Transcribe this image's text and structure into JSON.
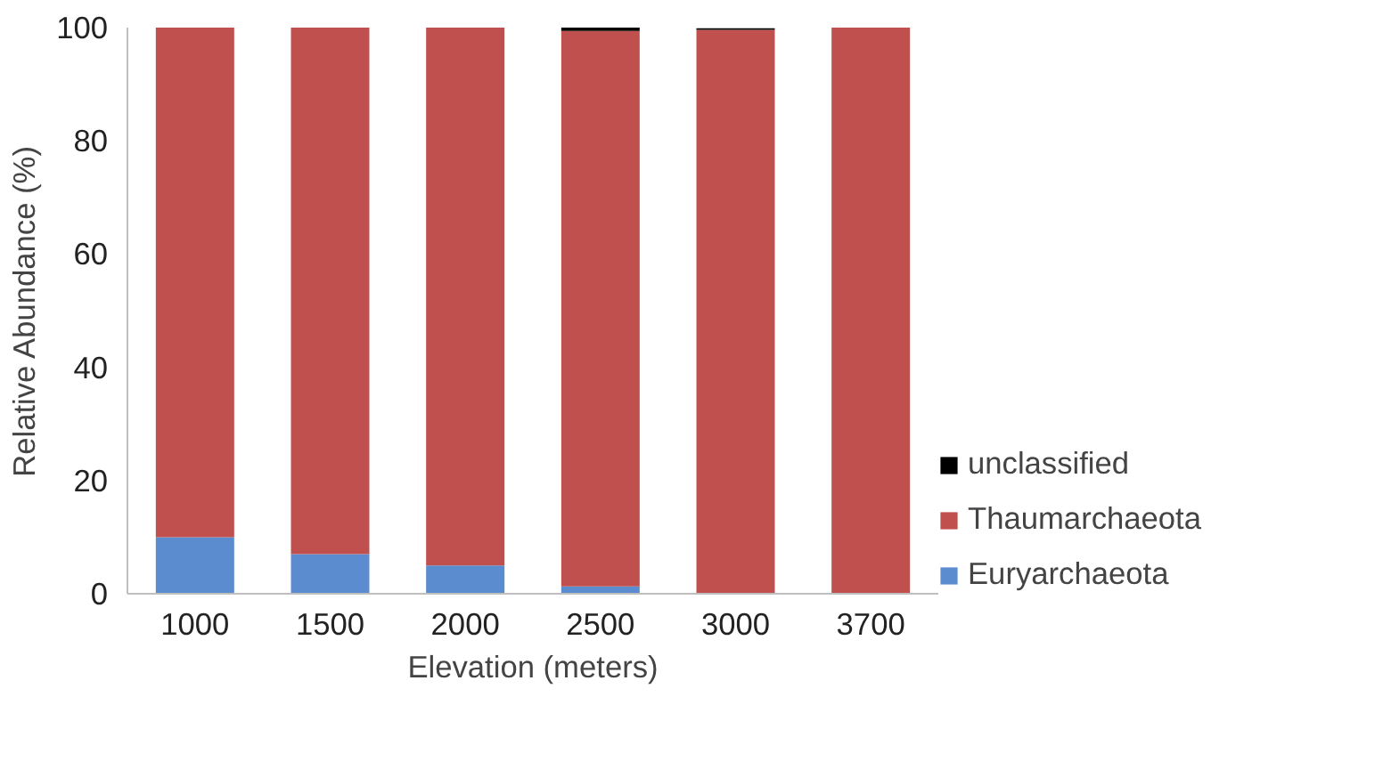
{
  "chart_data": {
    "type": "bar",
    "stacked": true,
    "categories": [
      "1000",
      "1500",
      "2000",
      "2500",
      "3000",
      "3700"
    ],
    "xlabel": "Elevation (meters)",
    "ylabel": "Relative Abundance (%)",
    "ylim": [
      0,
      100
    ],
    "yticks": [
      0,
      20,
      40,
      60,
      80,
      100
    ],
    "grid": false,
    "legend": "right",
    "series": [
      {
        "name": "Euryarchaeota",
        "color": "#5b8ccf",
        "values": [
          10,
          7,
          5,
          1.3,
          null,
          null
        ]
      },
      {
        "name": "Thaumarchaeota",
        "color": "#c0504d",
        "values": [
          90,
          93,
          95,
          98.1,
          99.6,
          100
        ]
      },
      {
        "name": "unclassified",
        "color": "#000000",
        "values": [
          0,
          0,
          0,
          0.6,
          0.3,
          0
        ]
      }
    ]
  }
}
